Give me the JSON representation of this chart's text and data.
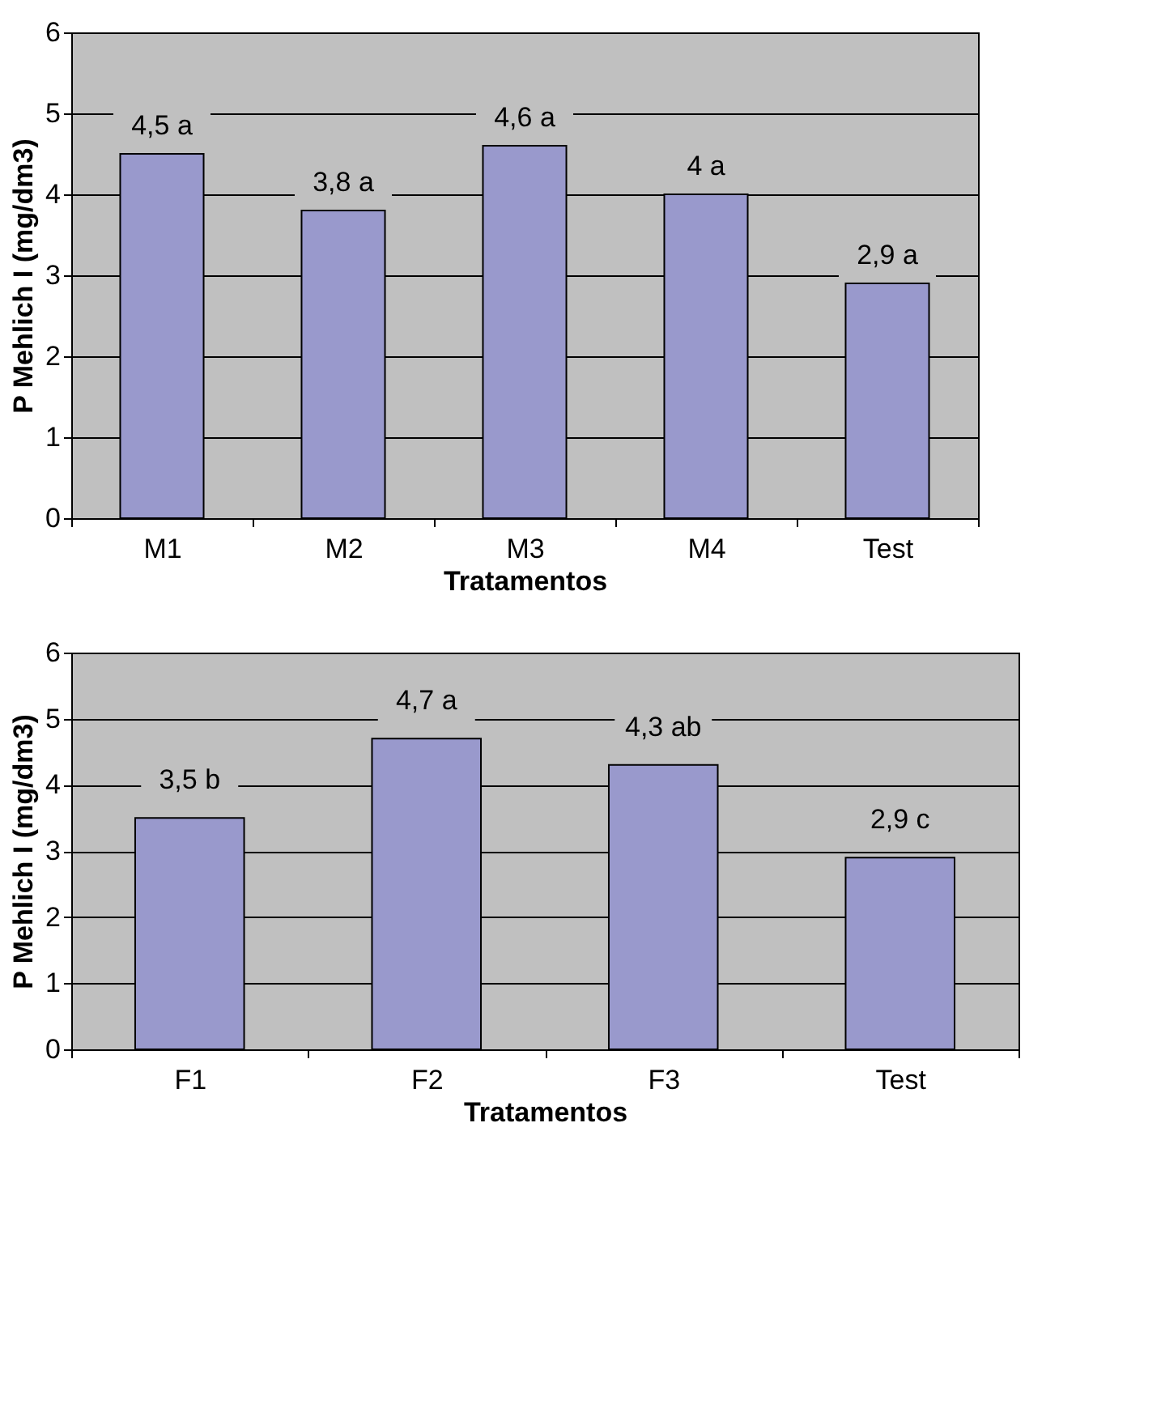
{
  "chart_data": [
    {
      "type": "bar",
      "categories": [
        "M1",
        "M2",
        "M3",
        "M4",
        "Test"
      ],
      "xlabel": "Tratamentos",
      "ylabel": "P Mehlich I (mg/dm3)",
      "series": [
        {
          "color": "#9999cc",
          "values": [
            4.5,
            3.8,
            4.6,
            4.0,
            2.9
          ],
          "value_labels": [
            "4,5 a",
            "3,8 a",
            "4,6 a",
            "4 a",
            "2,9 a"
          ]
        }
      ],
      "ylim": [
        0,
        6
      ],
      "yticks": [
        0,
        1,
        2,
        3,
        4,
        5,
        6
      ],
      "grid": "y",
      "legend": false
    },
    {
      "type": "bar",
      "categories": [
        "F1",
        "F2",
        "F3",
        "Test"
      ],
      "xlabel": "Tratamentos",
      "ylabel": "P Mehlich I (mg/dm3)",
      "series": [
        {
          "color": "#9999cc",
          "values": [
            3.5,
            4.7,
            4.3,
            2.9
          ],
          "value_labels": [
            "3,5 b",
            "4,7 a",
            "4,3 ab",
            "2,9 c"
          ]
        }
      ],
      "ylim": [
        0,
        6
      ],
      "yticks": [
        0,
        1,
        2,
        3,
        4,
        5,
        6
      ],
      "grid": "y",
      "legend": false
    }
  ]
}
